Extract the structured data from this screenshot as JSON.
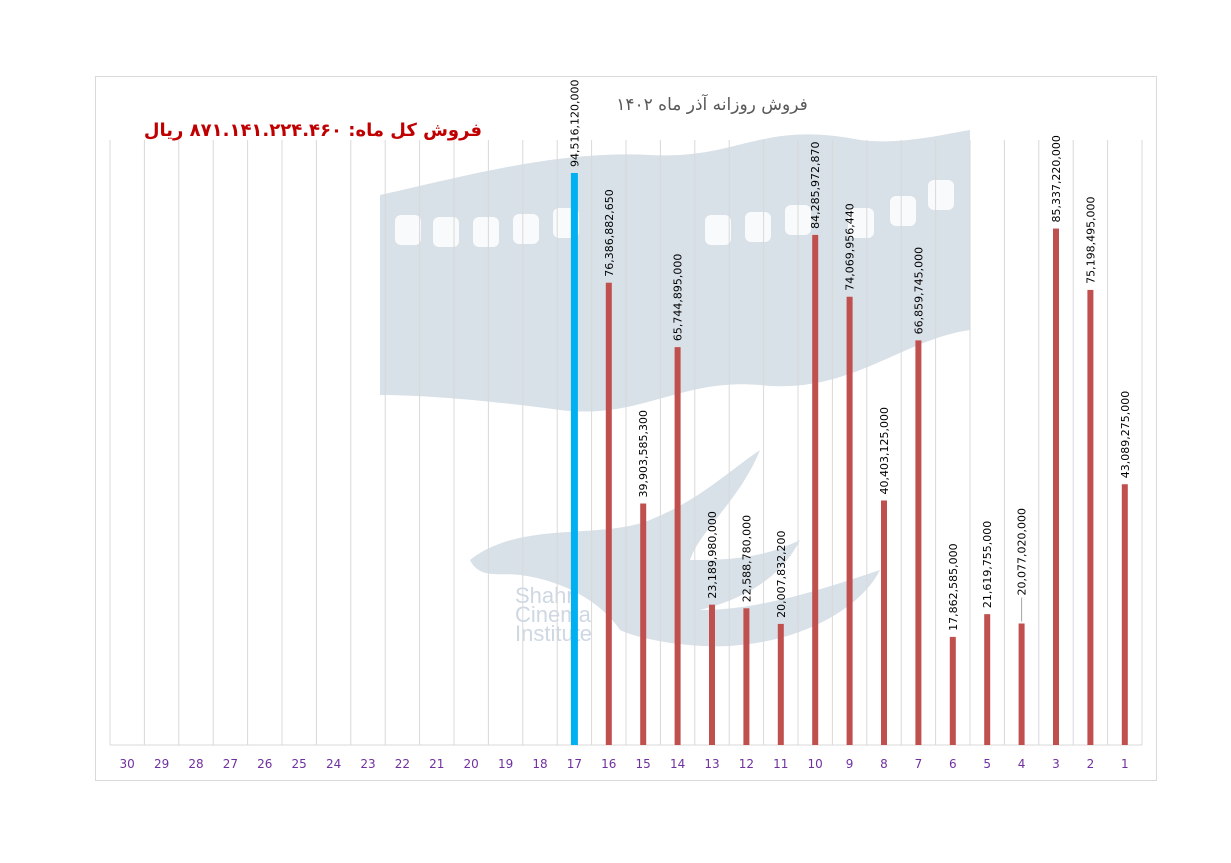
{
  "chart_data": {
    "type": "bar",
    "title": "فروش روزانه آذر ماه ۱۴۰۲",
    "total_label": "فروش کل ماه: ۸۷۱.۱۴۱.۲۲۴.۴۶۰ ریال",
    "categories": [
      "30",
      "29",
      "28",
      "27",
      "26",
      "25",
      "24",
      "23",
      "22",
      "21",
      "20",
      "19",
      "18",
      "17",
      "16",
      "15",
      "14",
      "13",
      "12",
      "11",
      "10",
      "9",
      "8",
      "7",
      "6",
      "5",
      "4",
      "3",
      "2",
      "1"
    ],
    "values": [
      null,
      null,
      null,
      null,
      null,
      null,
      null,
      null,
      null,
      null,
      null,
      null,
      null,
      94516120000,
      76386882650,
      39903585300,
      65744895000,
      23189980000,
      22588780000,
      20007832200,
      84285972870,
      74069956440,
      40403125000,
      66859745000,
      17862585000,
      21619755000,
      20077020000,
      85337220000,
      75198495000,
      43089275000
    ],
    "data_labels": [
      "",
      "",
      "",
      "",
      "",
      "",
      "",
      "",
      "",
      "",
      "",
      "",
      "",
      "94,516,120,000",
      "76,386,882,650",
      "39,903,585,300",
      "65,744,895,000",
      "23,189,980,000",
      "22,588,780,000",
      "20,007,832,200",
      "84,285,972,870",
      "74,069,956,440",
      "40,403,125,000",
      "66,859,745,000",
      "17,862,585,000",
      "21,619,755,000",
      "20,077,020,000",
      "85,337,220,000",
      "75,198,495,000",
      "43,089,275,000"
    ],
    "highlight_category": "17",
    "colors": {
      "bar": "#c0504d",
      "highlight": "#00b0f0",
      "tick_text": "#7030a0",
      "total_text": "#c00000",
      "grid": "#d9d9d9"
    },
    "watermark": {
      "latin": [
        "Shahr",
        "Cinema",
        "Institute"
      ]
    },
    "ylim": [
      0,
      100000000000
    ],
    "grid": "vertical",
    "xlabel": "",
    "ylabel": ""
  }
}
